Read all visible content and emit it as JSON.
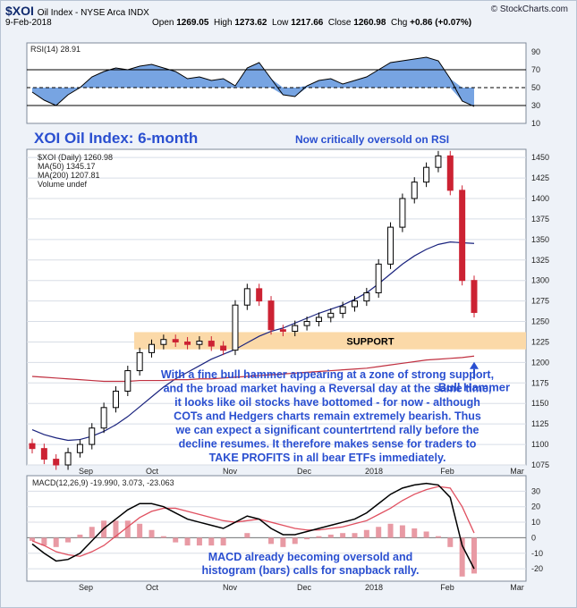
{
  "header": {
    "symbol": "$XOI",
    "name": "Oil Index - NYSE Arca INDX",
    "date": "9-Feb-2018",
    "open_label": "Open",
    "open": "1269.05",
    "high_label": "High",
    "high": "1273.62",
    "low_label": "Low",
    "low": "1217.66",
    "close_label": "Close",
    "close": "1260.98",
    "chg_label": "Chg",
    "chg": "+0.86 (+0.07%)",
    "brand": "© StockCharts.com"
  },
  "colors": {
    "rsi_fill": "#4a86d8",
    "price_up": "#000000",
    "price_down": "#cc2233",
    "ma50": "#1a237e",
    "ma200": "#c03040",
    "support_band": "#fbd9a8",
    "annotation": "#2a4fd0",
    "macd_line": "#000000",
    "signal_line": "#e05060",
    "hist": "#e89aa4"
  },
  "chart_data": [
    {
      "type": "line",
      "panel": "rsi",
      "legend": "RSI(14) 28.91",
      "ylim": [
        10,
        100
      ],
      "yticks": [
        10,
        30,
        50,
        70,
        90
      ],
      "reference_lines": [
        30,
        50,
        70
      ],
      "x": [
        "Aug 7",
        "Aug 12",
        "Aug 17",
        "Aug 22",
        "Aug 27",
        "Sep 1",
        "Sep 6",
        "Sep 11",
        "Sep 16",
        "Sep 21",
        "Sep 26",
        "Oct 1",
        "Oct 6",
        "Oct 11",
        "Oct 16",
        "Oct 21",
        "Oct 26",
        "Oct 31",
        "Nov 5",
        "Nov 10",
        "Nov 15",
        "Nov 20",
        "Nov 25",
        "Nov 30",
        "Dec 5",
        "Dec 10",
        "Dec 15",
        "Dec 20",
        "Dec 25",
        "Dec 30",
        "Jan 4",
        "Jan 9",
        "Jan 14",
        "Jan 19",
        "Jan 24",
        "Jan 29",
        "Feb 3",
        "Feb 9"
      ],
      "values": [
        45,
        36,
        30,
        42,
        50,
        62,
        68,
        72,
        70,
        74,
        76,
        72,
        68,
        60,
        62,
        58,
        60,
        52,
        72,
        78,
        60,
        42,
        40,
        52,
        58,
        60,
        54,
        58,
        62,
        70,
        78,
        80,
        82,
        84,
        80,
        60,
        35,
        28.91
      ]
    },
    {
      "type": "candlestick",
      "panel": "price",
      "title": "XOI Oil Index: 6-month",
      "legend": [
        "$XOI (Daily) 1260.98",
        "MA(50) 1345.17",
        "MA(200) 1207.81",
        "Volume undef"
      ],
      "ylim": [
        1075,
        1460
      ],
      "yticks": [
        1075,
        1100,
        1125,
        1150,
        1175,
        1200,
        1225,
        1250,
        1275,
        1300,
        1325,
        1350,
        1375,
        1400,
        1425,
        1450
      ],
      "xticks": [
        "Sep",
        "Oct",
        "Nov",
        "Dec",
        "2018",
        "Feb",
        "Mar"
      ],
      "support_band": [
        1216,
        1237
      ],
      "x": [
        "Aug 7",
        "Aug 12",
        "Aug 17",
        "Aug 22",
        "Aug 27",
        "Sep 1",
        "Sep 6",
        "Sep 11",
        "Sep 16",
        "Sep 21",
        "Sep 26",
        "Oct 1",
        "Oct 6",
        "Oct 11",
        "Oct 16",
        "Oct 21",
        "Oct 26",
        "Oct 31",
        "Nov 5",
        "Nov 10",
        "Nov 15",
        "Nov 20",
        "Nov 25",
        "Nov 30",
        "Dec 5",
        "Dec 10",
        "Dec 15",
        "Dec 20",
        "Dec 25",
        "Dec 30",
        "Jan 4",
        "Jan 9",
        "Jan 14",
        "Jan 19",
        "Jan 24",
        "Jan 29",
        "Feb 3",
        "Feb 9"
      ],
      "close": [
        1095,
        1082,
        1075,
        1090,
        1100,
        1120,
        1145,
        1165,
        1190,
        1212,
        1222,
        1228,
        1225,
        1222,
        1226,
        1220,
        1215,
        1270,
        1290,
        1275,
        1240,
        1238,
        1245,
        1250,
        1255,
        1260,
        1268,
        1275,
        1285,
        1320,
        1365,
        1400,
        1420,
        1438,
        1452,
        1410,
        1300,
        1261
      ],
      "ma50": [
        1118,
        1112,
        1108,
        1105,
        1106,
        1110,
        1116,
        1124,
        1134,
        1146,
        1158,
        1170,
        1180,
        1188,
        1196,
        1204,
        1210,
        1216,
        1224,
        1232,
        1238,
        1242,
        1248,
        1254,
        1260,
        1265,
        1270,
        1277,
        1285,
        1296,
        1308,
        1320,
        1330,
        1338,
        1344,
        1347,
        1346,
        1345.17
      ],
      "ma200": [
        1183,
        1182,
        1181,
        1180,
        1179,
        1178,
        1177,
        1177,
        1177,
        1178,
        1178,
        1178,
        1179,
        1179,
        1180,
        1180,
        1181,
        1182,
        1183,
        1184,
        1185,
        1186,
        1187,
        1188,
        1189,
        1190,
        1191,
        1192,
        1193,
        1195,
        1197,
        1199,
        1201,
        1203,
        1204,
        1205,
        1206,
        1207.81
      ]
    },
    {
      "type": "line",
      "panel": "macd",
      "legend": "MACD(12,26,9) -19.990, 3.073, -23.063",
      "ylim": [
        -28,
        40
      ],
      "yticks": [
        -20,
        -10,
        0,
        10,
        20,
        30
      ],
      "xticks": [
        "Sep",
        "Oct",
        "Nov",
        "Dec",
        "2018",
        "Feb",
        "Mar"
      ],
      "x": [
        "Aug 7",
        "Aug 12",
        "Aug 17",
        "Aug 22",
        "Aug 27",
        "Sep 1",
        "Sep 6",
        "Sep 11",
        "Sep 16",
        "Sep 21",
        "Sep 26",
        "Oct 1",
        "Oct 6",
        "Oct 11",
        "Oct 16",
        "Oct 21",
        "Oct 26",
        "Oct 31",
        "Nov 5",
        "Nov 10",
        "Nov 15",
        "Nov 20",
        "Nov 25",
        "Nov 30",
        "Dec 5",
        "Dec 10",
        "Dec 15",
        "Dec 20",
        "Dec 25",
        "Dec 30",
        "Jan 4",
        "Jan 9",
        "Jan 14",
        "Jan 19",
        "Jan 24",
        "Jan 29",
        "Feb 3",
        "Feb 9"
      ],
      "series": [
        {
          "name": "MACD",
          "values": [
            -4,
            -10,
            -15,
            -14,
            -10,
            -2,
            6,
            12,
            18,
            22,
            22,
            20,
            16,
            12,
            10,
            8,
            6,
            10,
            14,
            12,
            6,
            2,
            2,
            4,
            6,
            8,
            10,
            12,
            16,
            22,
            28,
            32,
            34,
            35,
            34,
            26,
            -5,
            -19.99
          ]
        },
        {
          "name": "Signal",
          "values": [
            -2,
            -5,
            -9,
            -11,
            -12,
            -9,
            -5,
            1,
            7,
            13,
            17,
            19,
            19,
            17,
            15,
            13,
            11,
            10,
            11,
            12,
            10,
            8,
            6,
            5,
            5,
            6,
            7,
            9,
            11,
            15,
            19,
            24,
            28,
            31,
            33,
            32,
            20,
            3.073
          ]
        },
        {
          "name": "Histogram",
          "values": [
            -2,
            -5,
            -6,
            -3,
            2,
            7,
            11,
            11,
            11,
            9,
            5,
            1,
            -3,
            -5,
            -5,
            -5,
            -5,
            0,
            3,
            0,
            -4,
            -6,
            -4,
            -1,
            1,
            2,
            3,
            3,
            5,
            7,
            9,
            8,
            6,
            4,
            1,
            -6,
            -25,
            -23.063
          ]
        }
      ]
    }
  ],
  "annotations": {
    "price_title": "XOI Oil Index: 6-month",
    "rsi_note": "Now critically oversold on RSI",
    "support": "SUPPORT",
    "bull_hammer": "Bull Hammer",
    "body": [
      "With a fine bull hammer appearing at a zone of strong support,",
      "and the broad market having a Reversal day at the same time,",
      "it looks like oil stocks have bottomed - for now - although",
      "COTs and Hedgers charts remain extremely bearish. Thus",
      "we can expect a significant countertrtend rally before the",
      "decline resumes. It therefore makes sense for traders to",
      "TAKE PROFITS in all bear ETFs immediately."
    ],
    "macd_note": [
      "MACD already becoming oversold and",
      "histogram (bars) calls for snapback rally."
    ]
  }
}
